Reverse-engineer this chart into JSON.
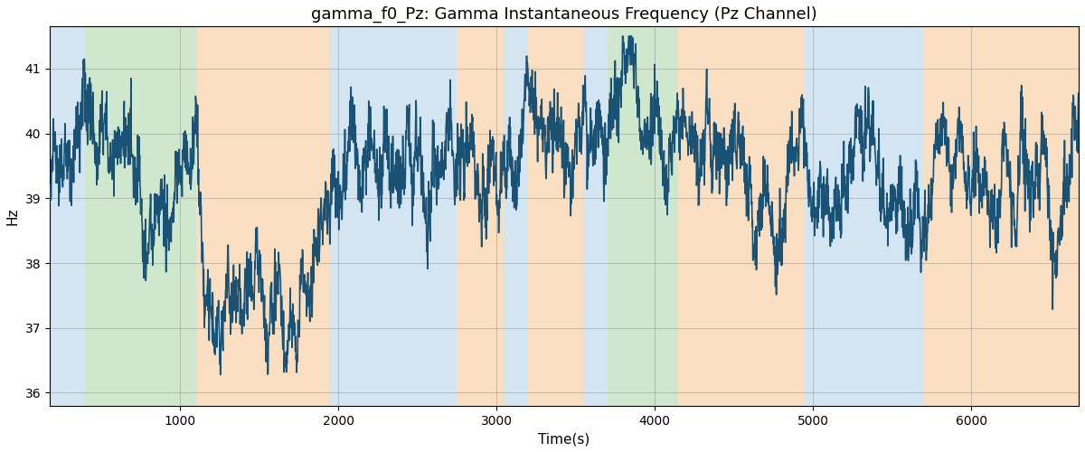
{
  "title": "gamma_f0_Pz: Gamma Instantaneous Frequency (Pz Channel)",
  "xlabel": "Time(s)",
  "ylabel": "Hz",
  "ylim": [
    35.8,
    41.65
  ],
  "xlim": [
    175,
    6680
  ],
  "bg_bands": [
    {
      "xmin": 175,
      "xmax": 400,
      "color": "#b0cfe8",
      "alpha": 0.55
    },
    {
      "xmin": 400,
      "xmax": 1100,
      "color": "#a8d5a2",
      "alpha": 0.55
    },
    {
      "xmin": 1100,
      "xmax": 1950,
      "color": "#f5c998",
      "alpha": 0.6
    },
    {
      "xmin": 1950,
      "xmax": 2750,
      "color": "#b0cfe8",
      "alpha": 0.55
    },
    {
      "xmin": 2750,
      "xmax": 3050,
      "color": "#f5c998",
      "alpha": 0.6
    },
    {
      "xmin": 3050,
      "xmax": 3200,
      "color": "#b0cfe8",
      "alpha": 0.55
    },
    {
      "xmin": 3200,
      "xmax": 3550,
      "color": "#f5c998",
      "alpha": 0.6
    },
    {
      "xmin": 3550,
      "xmax": 3700,
      "color": "#b0cfe8",
      "alpha": 0.55
    },
    {
      "xmin": 3700,
      "xmax": 4150,
      "color": "#a8d5a2",
      "alpha": 0.55
    },
    {
      "xmin": 4150,
      "xmax": 4950,
      "color": "#f5c998",
      "alpha": 0.6
    },
    {
      "xmin": 4950,
      "xmax": 5700,
      "color": "#b0cfe8",
      "alpha": 0.55
    },
    {
      "xmin": 5700,
      "xmax": 6680,
      "color": "#f5c998",
      "alpha": 0.6
    }
  ],
  "line_color": "#1a5276",
  "line_width": 1.2,
  "grid_color": "#999999",
  "grid_alpha": 0.5,
  "title_fontsize": 13,
  "axis_label_fontsize": 11,
  "yticks": [
    36,
    37,
    38,
    39,
    40,
    41
  ],
  "xticks": [
    1000,
    2000,
    3000,
    4000,
    5000,
    6000
  ],
  "seed": 17,
  "n_points": 3200,
  "x_start": 175,
  "x_end": 6680
}
